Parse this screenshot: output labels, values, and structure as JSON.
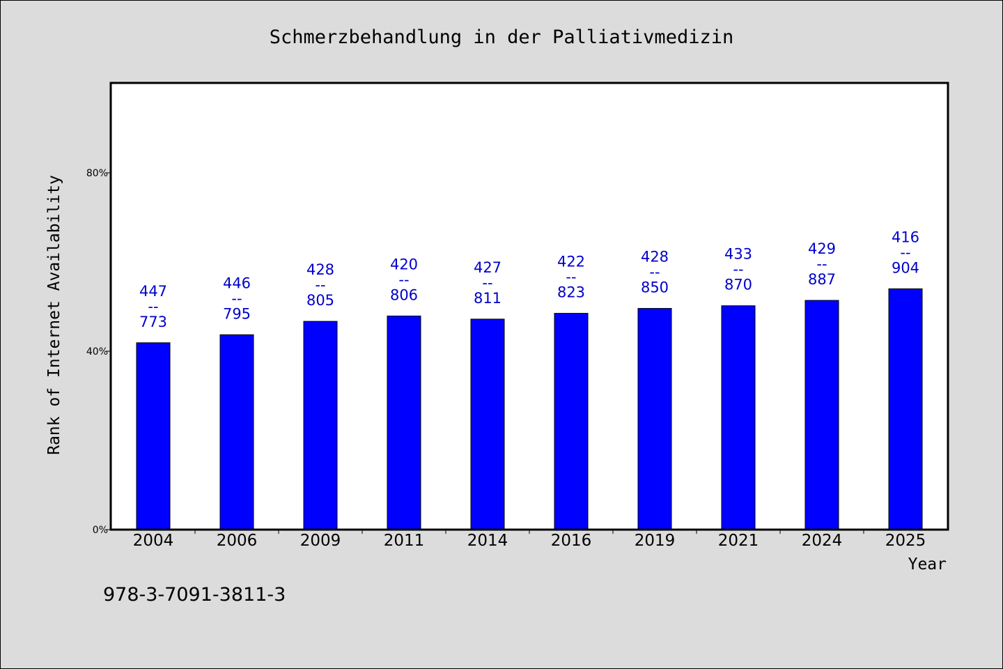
{
  "chart_data": {
    "type": "bar",
    "title": "Schmerzbehandlung in der Palliativmedizin",
    "xlabel": "Year",
    "ylabel": "Rank of Internet Availability",
    "categories": [
      "2004",
      "2006",
      "2009",
      "2011",
      "2014",
      "2016",
      "2019",
      "2021",
      "2024",
      "2025"
    ],
    "values": [
      41.9,
      43.7,
      46.7,
      47.9,
      47.2,
      48.5,
      49.6,
      50.2,
      51.4,
      54.0
    ],
    "data_labels": [
      [
        "447",
        "--",
        "773"
      ],
      [
        "446",
        "--",
        "795"
      ],
      [
        "428",
        "--",
        "805"
      ],
      [
        "420",
        "--",
        "806"
      ],
      [
        "427",
        "--",
        "811"
      ],
      [
        "422",
        "--",
        "823"
      ],
      [
        "428",
        "--",
        "850"
      ],
      [
        "433",
        "--",
        "870"
      ],
      [
        "429",
        "--",
        "887"
      ],
      [
        "416",
        "--",
        "904"
      ]
    ],
    "ylim": [
      0,
      100
    ],
    "yticks": [
      0,
      40,
      80
    ],
    "ytick_labels": [
      "0%",
      "40%",
      "80%"
    ],
    "grid": false,
    "colors": {
      "bar": "#0000ff",
      "label": "#0000cc",
      "plot_bg": "#ffffff",
      "figure_bg": "#dcdcdc"
    }
  },
  "footer": {
    "isbn": "978-3-7091-3811-3"
  }
}
